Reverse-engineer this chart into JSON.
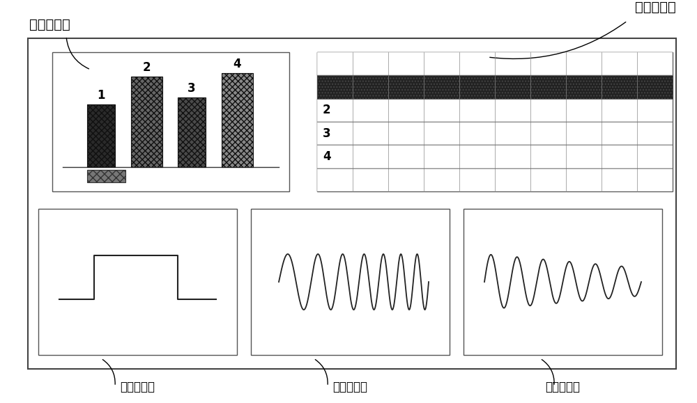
{
  "title_time_overview": "时间概览图",
  "title_param_table": "脉冲参数表",
  "label_amplitude": "脉冲幅度图",
  "label_frequency": "脉冲频率图",
  "label_phase": "脉冲相位图",
  "bg_color": "#ffffff",
  "bar_labels": [
    "1",
    "2",
    "3",
    "4"
  ],
  "table_row_labels": [
    "2",
    "3",
    "4"
  ],
  "font_size_title": 14,
  "font_size_label": 12,
  "font_size_bar": 12,
  "font_size_table": 11,
  "outer_lw": 1.5,
  "inner_lw": 1.0
}
